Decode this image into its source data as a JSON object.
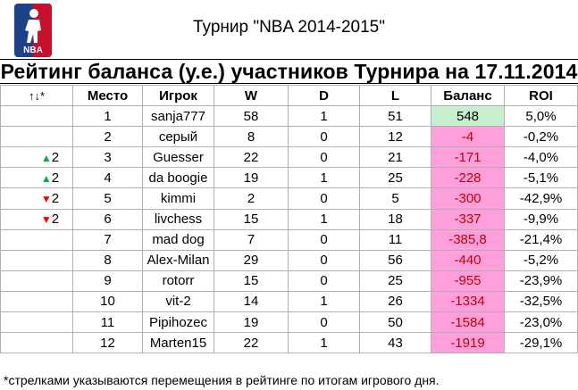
{
  "header": {
    "tournament_title": "Турнир \"NBA 2014-2015\"",
    "rating_title": "Рейтинг баланса (у.е.) участников Турнира на 17.11.2014",
    "logo_text": "NBA"
  },
  "table": {
    "columns": [
      "↑↓*",
      "Место",
      "Игрок",
      "W",
      "D",
      "L",
      "Баланс",
      "ROI"
    ],
    "rows": [
      {
        "move": "",
        "dir": "",
        "place": "1",
        "player": "sanja777",
        "w": "58",
        "d": "1",
        "l": "51",
        "balance": "548",
        "roi": "5,0%"
      },
      {
        "move": "",
        "dir": "",
        "place": "2",
        "player": "серый",
        "w": "8",
        "d": "0",
        "l": "12",
        "balance": "-4",
        "roi": "-0,2%"
      },
      {
        "move": "2",
        "dir": "up",
        "place": "3",
        "player": "Guesser",
        "w": "22",
        "d": "0",
        "l": "21",
        "balance": "-171",
        "roi": "-4,0%"
      },
      {
        "move": "2",
        "dir": "up",
        "place": "4",
        "player": "da boogie",
        "w": "19",
        "d": "1",
        "l": "25",
        "balance": "-228",
        "roi": "-5,1%"
      },
      {
        "move": "2",
        "dir": "down",
        "place": "5",
        "player": "kimmi",
        "w": "2",
        "d": "0",
        "l": "5",
        "balance": "-300",
        "roi": "-42,9%"
      },
      {
        "move": "2",
        "dir": "down",
        "place": "6",
        "player": "livchess",
        "w": "15",
        "d": "1",
        "l": "18",
        "balance": "-337",
        "roi": "-9,9%"
      },
      {
        "move": "",
        "dir": "",
        "place": "7",
        "player": "mad dog",
        "w": "7",
        "d": "0",
        "l": "11",
        "balance": "-385,8",
        "roi": "-21,4%"
      },
      {
        "move": "",
        "dir": "",
        "place": "8",
        "player": "Alex-Milan",
        "w": "29",
        "d": "0",
        "l": "56",
        "balance": "-440",
        "roi": "-5,2%"
      },
      {
        "move": "",
        "dir": "",
        "place": "9",
        "player": "rotorr",
        "w": "15",
        "d": "0",
        "l": "25",
        "balance": "-955",
        "roi": "-23,9%"
      },
      {
        "move": "",
        "dir": "",
        "place": "10",
        "player": "vit-2",
        "w": "14",
        "d": "1",
        "l": "26",
        "balance": "-1334",
        "roi": "-32,5%"
      },
      {
        "move": "",
        "dir": "",
        "place": "11",
        "player": "Pipihozec",
        "w": "19",
        "d": "0",
        "l": "50",
        "balance": "-1584",
        "roi": "-23,0%"
      },
      {
        "move": "",
        "dir": "",
        "place": "12",
        "player": "Marten15",
        "w": "22",
        "d": "1",
        "l": "43",
        "balance": "-1919",
        "roi": "-29,1%"
      }
    ]
  },
  "colors": {
    "positive_balance_bg": "#c6efce",
    "negative_balance_bg": "#ffa0dc",
    "negative_balance_text": "#c00000",
    "up_arrow": "#00b050",
    "down_arrow": "#ff0000",
    "logo_blue": "#1d428a",
    "logo_red": "#c8102e"
  },
  "footnote": "*стрелками указываются перемещения в рейтинге по итогам игрового дня."
}
